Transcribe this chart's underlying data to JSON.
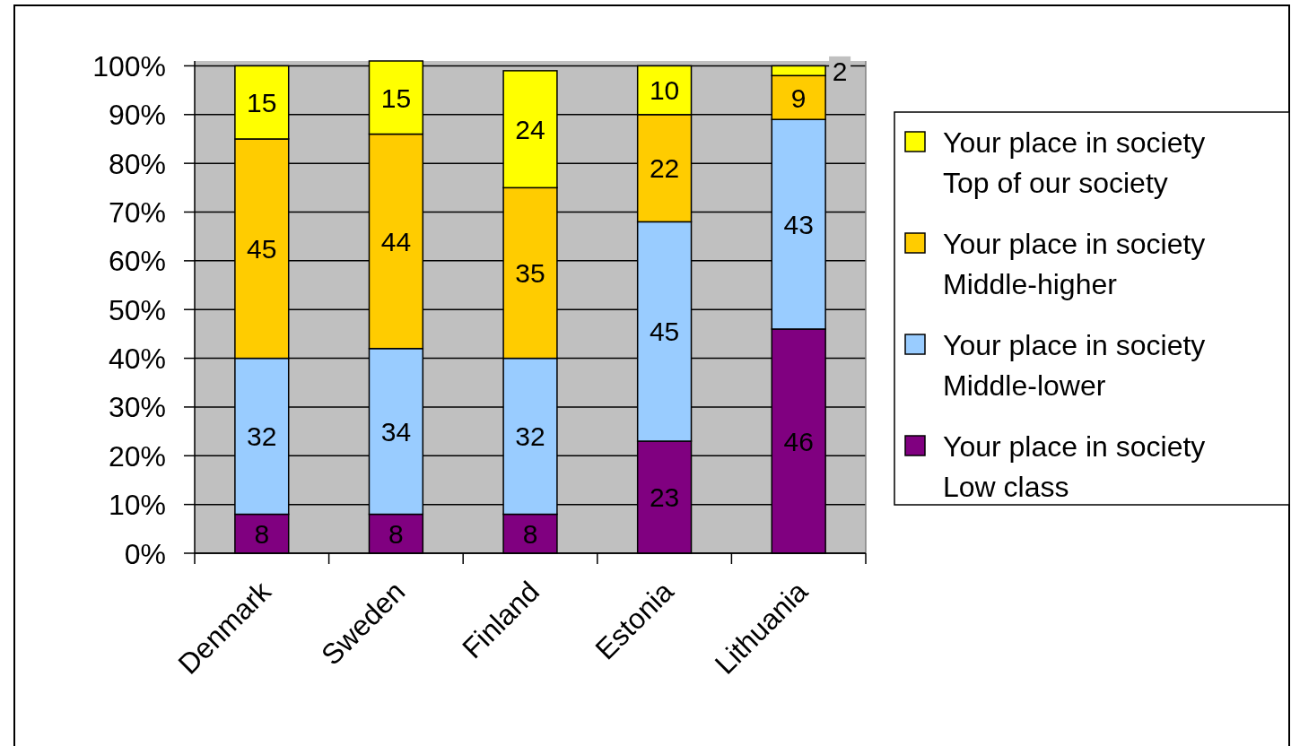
{
  "chart_data": {
    "type": "bar",
    "stacked": true,
    "categories": [
      "Denmark",
      "Sweden",
      "Finland",
      "Estonia",
      "Lithuania"
    ],
    "series": [
      {
        "name": "Your place in society Low class",
        "color": "#800080",
        "values": [
          8,
          8,
          8,
          23,
          46
        ]
      },
      {
        "name": "Your place in society Middle-lower",
        "color": "#99ccff",
        "values": [
          32,
          34,
          32,
          45,
          43
        ]
      },
      {
        "name": "Your place in society Middle-higher",
        "color": "#ffcc00",
        "values": [
          45,
          44,
          35,
          22,
          9
        ]
      },
      {
        "name": "Your place in society Top of our society",
        "color": "#ffff00",
        "values": [
          15,
          15,
          24,
          10,
          2
        ]
      }
    ],
    "ylim": [
      0,
      101
    ],
    "yticks": [
      {
        "value": 0,
        "label": "0%"
      },
      {
        "value": 10,
        "label": "10%"
      },
      {
        "value": 20,
        "label": "20%"
      },
      {
        "value": 30,
        "label": "30%"
      },
      {
        "value": 40,
        "label": "40%"
      },
      {
        "value": 50,
        "label": "50%"
      },
      {
        "value": 60,
        "label": "60%"
      },
      {
        "value": 70,
        "label": "70%"
      },
      {
        "value": 80,
        "label": "80%"
      },
      {
        "value": 90,
        "label": "90%"
      },
      {
        "value": 100,
        "label": "100%"
      }
    ],
    "grid": "y",
    "legend": "right",
    "data_labels": true
  }
}
